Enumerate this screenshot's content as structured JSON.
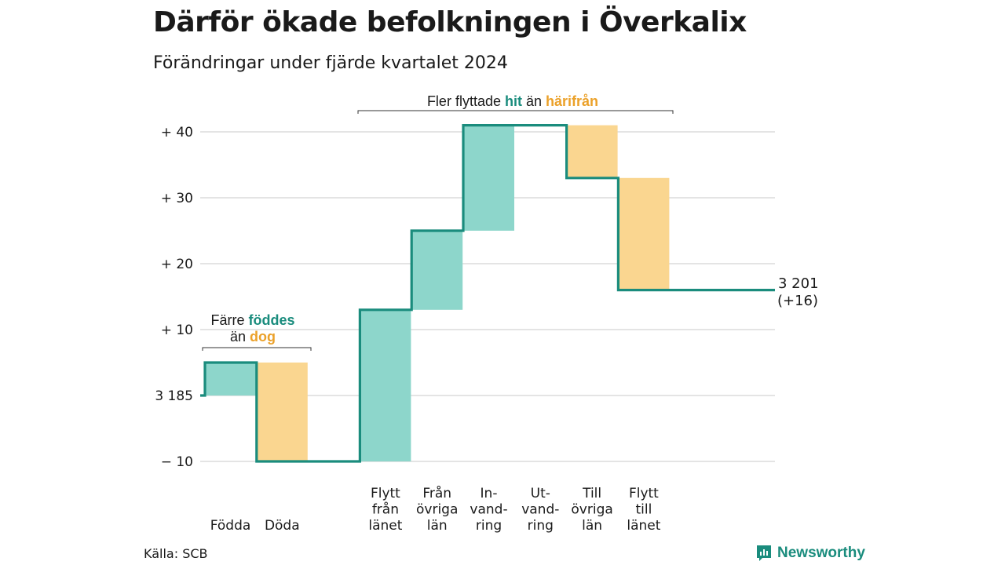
{
  "title": "Därför ökade befolkningen i Överkalix",
  "subtitle": "Förändringar under fjärde kvartalet 2024",
  "source": "Källa: SCB",
  "brand": "Newsworthy",
  "colors": {
    "teal_line": "#1a8c7d",
    "teal_fill": "#8dd6cb",
    "orange_fill": "#fad690",
    "orange_text": "#eba12a",
    "grid": "#dcdcdc"
  },
  "chart_data": {
    "type": "bar",
    "subtype": "waterfall",
    "baseline": 3185,
    "baseline_label": "3 185",
    "ylim": [
      -12,
      44
    ],
    "yticks": [
      {
        "value": -10,
        "label": "− 10"
      },
      {
        "value": 0,
        "label": "3 185"
      },
      {
        "value": 10,
        "label": "+ 10"
      },
      {
        "value": 20,
        "label": "+ 20"
      },
      {
        "value": 30,
        "label": "+ 30"
      },
      {
        "value": 40,
        "label": "+ 40"
      }
    ],
    "categories": [
      {
        "lines": [
          "Födda"
        ],
        "change": 5,
        "kind": "in"
      },
      {
        "lines": [
          "Döda"
        ],
        "change": -15,
        "kind": "out"
      },
      {
        "lines": [],
        "change": 0,
        "kind": "gap"
      },
      {
        "lines": [
          "Flytt",
          "från",
          "länet"
        ],
        "change": 23,
        "kind": "in"
      },
      {
        "lines": [
          "Från",
          "övriga",
          "län"
        ],
        "change": 12,
        "kind": "in"
      },
      {
        "lines": [
          "In-",
          "vand-",
          "ring"
        ],
        "change": 16,
        "kind": "in"
      },
      {
        "lines": [
          "Ut-",
          "vand-",
          "ring"
        ],
        "change": 0,
        "kind": "out"
      },
      {
        "lines": [
          "Till",
          "övriga",
          "län"
        ],
        "change": -8,
        "kind": "out"
      },
      {
        "lines": [
          "Flytt",
          "till",
          "länet"
        ],
        "change": -17,
        "kind": "out"
      }
    ],
    "end_value": "3 201",
    "end_change": "(+16)",
    "annotations": [
      {
        "parts": [
          "Färre ",
          "föddes"
        ],
        "line2": [
          "än ",
          "dog"
        ]
      },
      {
        "parts": [
          "Fler flyttade ",
          "hit",
          " än ",
          "härifrån"
        ]
      }
    ],
    "grid": true,
    "legend": "none"
  }
}
